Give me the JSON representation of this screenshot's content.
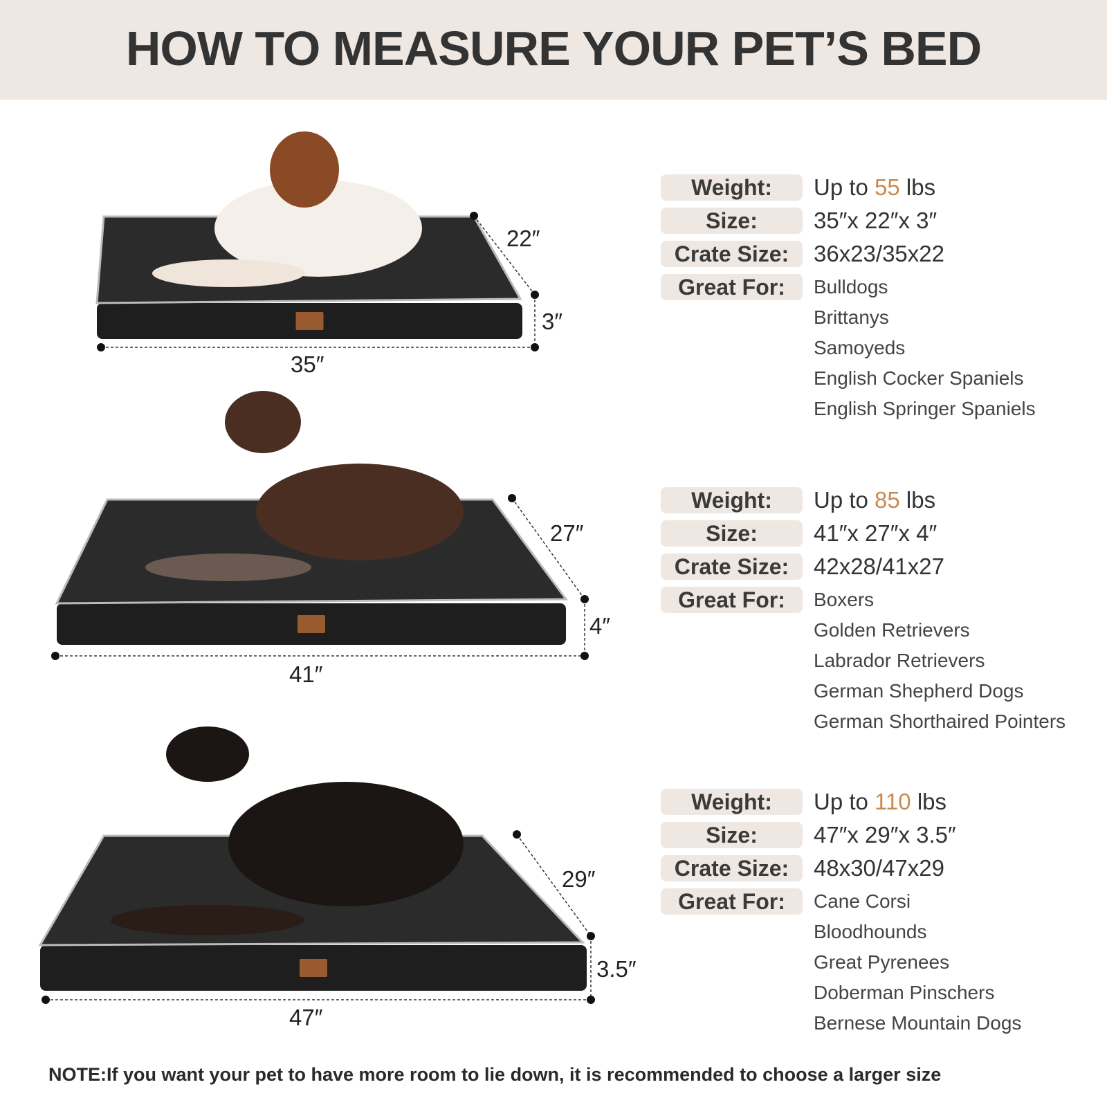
{
  "header": {
    "title": "HOW TO MEASURE YOUR PET’S BED"
  },
  "colors": {
    "header_bg": "#efe7e1",
    "accent": "#c98a52",
    "bed": "#222222"
  },
  "labels": {
    "weight": "Weight:",
    "size": "Size:",
    "crate": "Crate Size:",
    "great_for": "Great For:"
  },
  "sizes": [
    {
      "length": "35″",
      "width": "22″",
      "height": "3″",
      "weight_prefix": "Up to ",
      "weight_num": "55",
      "weight_unit": " lbs",
      "size": "35″x 22″x 3″",
      "crate": "36x23/35x22",
      "breeds": [
        "Bulldogs",
        "Brittanys",
        "Samoyeds",
        "English Cocker Spaniels",
        "English Springer Spaniels"
      ]
    },
    {
      "length": "41″",
      "width": "27″",
      "height": "4″",
      "weight_prefix": "Up to ",
      "weight_num": "85",
      "weight_unit": " lbs",
      "size": "41″x 27″x 4″",
      "crate": "42x28/41x27",
      "breeds": [
        "Boxers",
        "Golden Retrievers",
        "Labrador Retrievers",
        "German Shepherd Dogs",
        "German Shorthaired Pointers"
      ]
    },
    {
      "length": "47″",
      "width": "29″",
      "height": "3.5″",
      "weight_prefix": "Up to ",
      "weight_num": "110",
      "weight_unit": " lbs",
      "size": "47″x 29″x 3.5″",
      "crate": "48x30/47x29",
      "breeds": [
        "Cane Corsi",
        "Bloodhounds",
        "Great Pyrenees",
        "Doberman Pinschers",
        "Bernese Mountain Dogs"
      ]
    }
  ],
  "note": "NOTE:If you want your pet to have more room to lie down, it is recommended to choose a larger size"
}
